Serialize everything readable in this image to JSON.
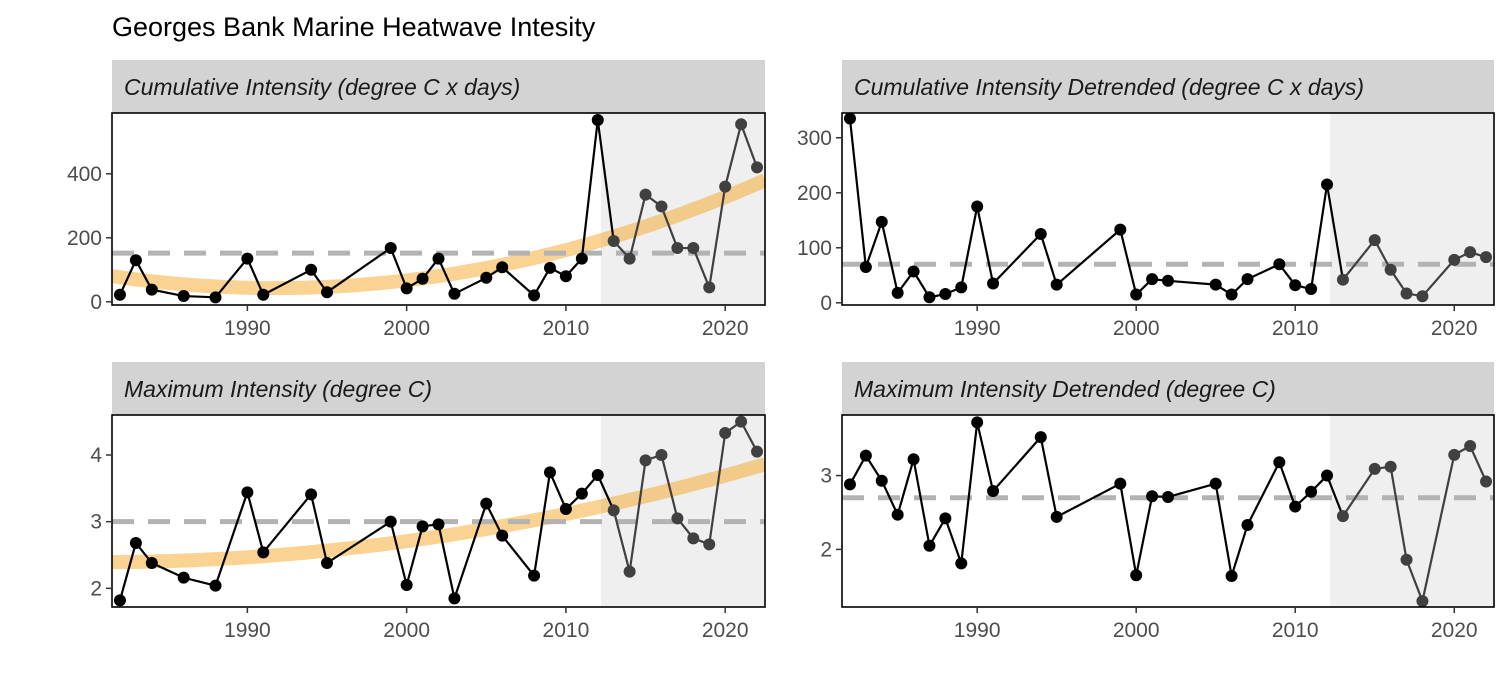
{
  "title": "Georges Bank Marine Heatwave Intesity",
  "colors": {
    "line": "#000000",
    "recent_line": "#404040",
    "trend": "#f5a623",
    "mean_line": "#b3b3b3",
    "recent_shade": "#efefef",
    "strip": "#d3d3d3"
  },
  "chart_data": [
    {
      "type": "line",
      "title": "Cumulative Intensity (degree C x days)",
      "xlim": [
        1981.5,
        2022.5
      ],
      "ylim": [
        -10,
        590
      ],
      "x_ticks": [
        1990,
        2000,
        2010,
        2020
      ],
      "y_ticks": [
        0,
        200,
        400
      ],
      "recent_start": 2012.2,
      "mean": 152,
      "trend_line": true,
      "x": [
        1982,
        1983,
        1984,
        1986,
        1988,
        1990,
        1991,
        1994,
        1995,
        1999,
        2000,
        2001,
        2002,
        2003,
        2005,
        2006,
        2008,
        2009,
        2010,
        2011,
        2012,
        2013,
        2014,
        2015,
        2016,
        2017,
        2018,
        2019,
        2020,
        2021,
        2022
      ],
      "y": [
        22,
        130,
        38,
        18,
        14,
        135,
        22,
        100,
        30,
        168,
        42,
        72,
        135,
        25,
        75,
        108,
        20,
        106,
        80,
        135,
        568,
        190,
        135,
        335,
        298,
        168,
        168,
        45,
        360,
        555,
        420
      ]
    },
    {
      "type": "line",
      "title": "Cumulative Intensity Detrended (degree C x days)",
      "xlim": [
        1981.5,
        2022.5
      ],
      "ylim": [
        -4,
        345
      ],
      "x_ticks": [
        1990,
        2000,
        2010,
        2020
      ],
      "y_ticks": [
        0,
        100,
        200,
        300
      ],
      "recent_start": 2012.2,
      "mean": 70,
      "trend_line": false,
      "x": [
        1982,
        1983,
        1984,
        1985,
        1986,
        1987,
        1988,
        1989,
        1990,
        1991,
        1994,
        1995,
        1999,
        2000,
        2001,
        2002,
        2005,
        2006,
        2007,
        2009,
        2010,
        2011,
        2012,
        2013,
        2015,
        2016,
        2017,
        2018,
        2020,
        2021,
        2022
      ],
      "y": [
        335,
        65,
        147,
        18,
        57,
        10,
        16,
        28,
        175,
        35,
        125,
        33,
        133,
        15,
        43,
        40,
        33,
        15,
        43,
        70,
        32,
        25,
        215,
        42,
        114,
        60,
        17,
        12,
        78,
        92,
        83
      ]
    },
    {
      "type": "line",
      "title": "Maximum Intensity (degree C)",
      "xlim": [
        1981.5,
        2022.5
      ],
      "ylim": [
        1.72,
        4.6
      ],
      "x_ticks": [
        1990,
        2000,
        2010,
        2020
      ],
      "y_ticks": [
        2,
        3,
        4
      ],
      "recent_start": 2012.2,
      "mean": 3.0,
      "trend_line": true,
      "x": [
        1982,
        1983,
        1984,
        1986,
        1988,
        1990,
        1991,
        1994,
        1995,
        1999,
        2000,
        2001,
        2002,
        2003,
        2005,
        2006,
        2008,
        2009,
        2010,
        2011,
        2012,
        2013,
        2014,
        2015,
        2016,
        2017,
        2018,
        2019,
        2020,
        2021,
        2022
      ],
      "y": [
        1.82,
        2.68,
        2.38,
        2.16,
        2.04,
        3.44,
        2.54,
        3.41,
        2.38,
        3.0,
        2.05,
        2.93,
        2.96,
        1.85,
        3.27,
        2.79,
        2.19,
        3.74,
        3.19,
        3.42,
        3.7,
        3.17,
        2.25,
        3.92,
        4.0,
        3.05,
        2.75,
        2.66,
        4.33,
        4.5,
        4.05
      ]
    },
    {
      "type": "line",
      "title": "Maximum Intensity Detrended (degree C)",
      "xlim": [
        1981.5,
        2022.5
      ],
      "ylim": [
        1.22,
        3.82
      ],
      "x_ticks": [
        1990,
        2000,
        2010,
        2020
      ],
      "y_ticks": [
        2,
        3
      ],
      "recent_start": 2012.2,
      "mean": 2.7,
      "trend_line": false,
      "x": [
        1982,
        1983,
        1984,
        1985,
        1986,
        1987,
        1988,
        1989,
        1990,
        1991,
        1994,
        1995,
        1999,
        2000,
        2001,
        2002,
        2005,
        2006,
        2007,
        2009,
        2010,
        2011,
        2012,
        2013,
        2015,
        2016,
        2017,
        2018,
        2020,
        2021,
        2022
      ],
      "y": [
        2.88,
        3.27,
        2.93,
        2.47,
        3.22,
        2.05,
        2.42,
        1.81,
        3.72,
        2.79,
        3.52,
        2.44,
        2.89,
        1.65,
        2.72,
        2.71,
        2.89,
        1.64,
        2.33,
        3.18,
        2.58,
        2.78,
        3.0,
        2.45,
        3.09,
        3.12,
        1.86,
        1.3,
        3.28,
        3.4,
        2.92
      ]
    }
  ]
}
